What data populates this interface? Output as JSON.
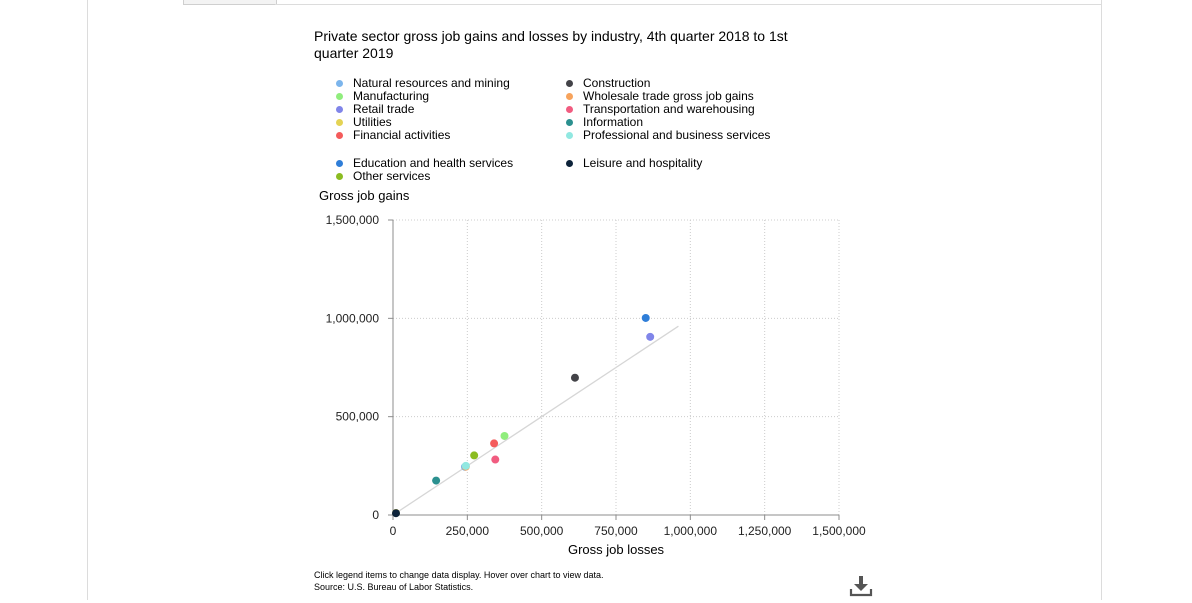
{
  "chart_data": {
    "type": "scatter",
    "title": "Private sector gross job gains and losses by industry, 4th quarter 2018 to 1st quarter 2019",
    "xlabel": "Gross job losses",
    "ylabel": "Gross job gains",
    "xlim": [
      0,
      1500000
    ],
    "ylim": [
      0,
      1500000
    ],
    "x_ticks": [
      "0",
      "250,000",
      "500,000",
      "750,000",
      "1,000,000",
      "1,250,000",
      "1,500,000"
    ],
    "y_ticks": [
      "0",
      "500,000",
      "1,000,000",
      "1,500,000"
    ],
    "grid": true,
    "legend_placement": "top",
    "reference_line": {
      "from": [
        0,
        0
      ],
      "to": [
        960000,
        960000
      ],
      "color": "#d6d6d6"
    },
    "series": [
      {
        "name": "Natural resources and mining",
        "color": "#7cb5ec",
        "points": [
          [
            242000,
            245000
          ]
        ]
      },
      {
        "name": "Construction",
        "color": "#434348",
        "points": [
          [
            612000,
            698000
          ]
        ]
      },
      {
        "name": "Manufacturing",
        "color": "#90ed7d",
        "points": [
          [
            375000,
            402000
          ]
        ]
      },
      {
        "name": "Wholesale trade gross job gains",
        "color": "#f7a35c",
        "points": [
          [
            245000,
            246000
          ]
        ]
      },
      {
        "name": "Retail trade",
        "color": "#8085e9",
        "points": [
          [
            865000,
            906000
          ]
        ]
      },
      {
        "name": "Transportation and warehousing",
        "color": "#f15c80",
        "points": [
          [
            344000,
            282000
          ]
        ]
      },
      {
        "name": "Utilities",
        "color": "#e4d354",
        "points": [
          [
            10000,
            10000
          ]
        ]
      },
      {
        "name": "Information",
        "color": "#2b908f",
        "points": [
          [
            145000,
            175000
          ]
        ]
      },
      {
        "name": "Financial activities",
        "color": "#f45b5b",
        "points": [
          [
            340000,
            364000
          ]
        ]
      },
      {
        "name": "Professional and business services",
        "color": "#91e8e1",
        "points": [
          [
            245000,
            250000
          ]
        ]
      },
      {
        "name": "Education and health services",
        "color": "#2f7ed8",
        "points": [
          [
            850000,
            1002000
          ]
        ]
      },
      {
        "name": "Leisure and hospitality",
        "color": "#0d233a",
        "points": [
          [
            10000,
            9000
          ]
        ]
      },
      {
        "name": "Other services",
        "color": "#8bbc21",
        "points": [
          [
            273000,
            303000
          ]
        ]
      }
    ]
  },
  "footnote": {
    "line1": "Click legend items to change data display. Hover over chart to view data.",
    "line2": "Source: U.S. Bureau of Labor Statistics."
  },
  "icons": {
    "download": "download-icon"
  }
}
